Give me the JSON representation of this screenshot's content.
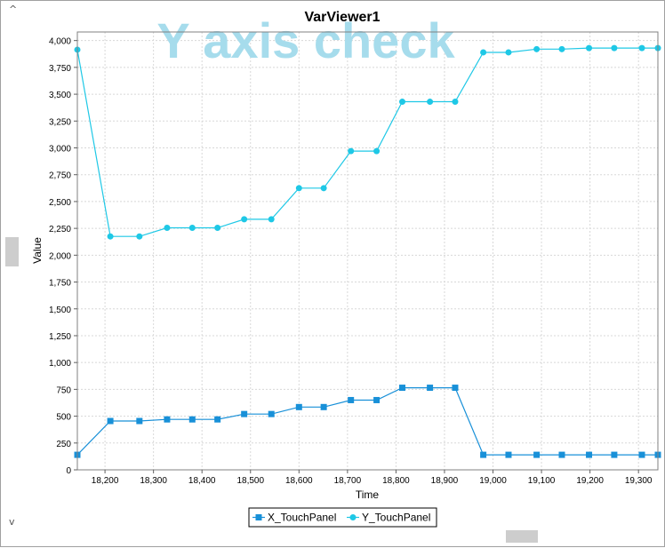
{
  "window": {
    "title": "VarViewer1"
  },
  "watermark": "Y axis check",
  "scroll": {
    "up_glyph": "^",
    "down_glyph": "v"
  },
  "chart_data": {
    "type": "line",
    "title": "VarViewer1",
    "xlabel": "Time",
    "ylabel": "Value",
    "xlim": [
      18143,
      19340
    ],
    "ylim": [
      0,
      4080
    ],
    "x_ticks": [
      18200,
      18300,
      18400,
      18500,
      18600,
      18700,
      18800,
      18900,
      19000,
      19100,
      19200,
      19300
    ],
    "x_tick_labels": [
      "18,200",
      "18,300",
      "18,400",
      "18,500",
      "18,600",
      "18,700",
      "18,800",
      "18,900",
      "19,000",
      "19,100",
      "19,200",
      "19,300"
    ],
    "y_ticks": [
      0,
      250,
      500,
      750,
      1000,
      1250,
      1500,
      1750,
      2000,
      2250,
      2500,
      2750,
      3000,
      3250,
      3500,
      3750,
      4000
    ],
    "y_tick_labels": [
      "0",
      "250",
      "500",
      "750",
      "1,000",
      "1,250",
      "1,500",
      "1,750",
      "2,000",
      "2,250",
      "2,500",
      "2,750",
      "3,000",
      "3,250",
      "3,500",
      "3,750",
      "4,000"
    ],
    "grid": true,
    "legend_position": "bottom-center",
    "x": [
      18143,
      18211,
      18271,
      18328,
      18380,
      18432,
      18487,
      18543,
      18600,
      18651,
      18707,
      18760,
      18813,
      18870,
      18922,
      18980,
      19032,
      19090,
      19142,
      19198,
      19250,
      19307,
      19340
    ],
    "series": [
      {
        "name": "X_TouchPanel",
        "marker": "square",
        "color": "#1890d8",
        "values": [
          140,
          455,
          455,
          470,
          470,
          470,
          520,
          520,
          585,
          585,
          650,
          650,
          765,
          765,
          765,
          140,
          140,
          140,
          140,
          140,
          140,
          140,
          140
        ]
      },
      {
        "name": "Y_TouchPanel",
        "marker": "circle",
        "color": "#1ec8e6",
        "values": [
          3915,
          2175,
          2175,
          2255,
          2255,
          2255,
          2335,
          2335,
          2625,
          2625,
          2970,
          2970,
          3430,
          3430,
          3430,
          3890,
          3890,
          3920,
          3920,
          3930,
          3930,
          3930,
          3930
        ]
      }
    ]
  }
}
